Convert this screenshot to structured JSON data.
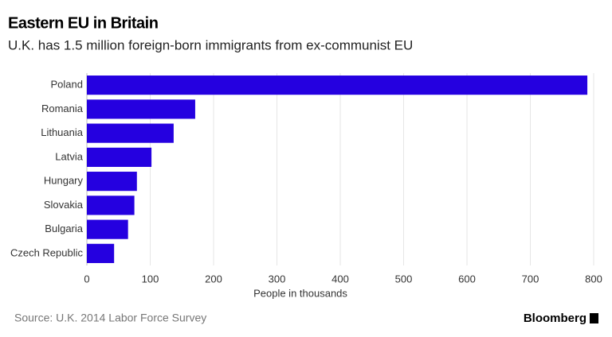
{
  "chart_data": {
    "type": "bar",
    "orientation": "horizontal",
    "title": "Eastern EU in Britain",
    "subtitle": "U.K. has 1.5 million foreign-born immigrants from ex-communist EU",
    "categories": [
      "Poland",
      "Romania",
      "Lithuania",
      "Latvia",
      "Hungary",
      "Slovakia",
      "Bulgaria",
      "Czech Republic"
    ],
    "values": [
      790,
      171,
      137,
      102,
      79,
      75,
      65,
      43
    ],
    "color": "#2500e0",
    "xlim": [
      0,
      800
    ],
    "xticks": [
      0,
      100,
      200,
      300,
      400,
      500,
      600,
      700,
      800
    ],
    "xlabel": "People in thousands",
    "grid": true,
    "source": "Source: U.K. 2014 Labor Force Survey",
    "brand": "Bloomberg"
  }
}
